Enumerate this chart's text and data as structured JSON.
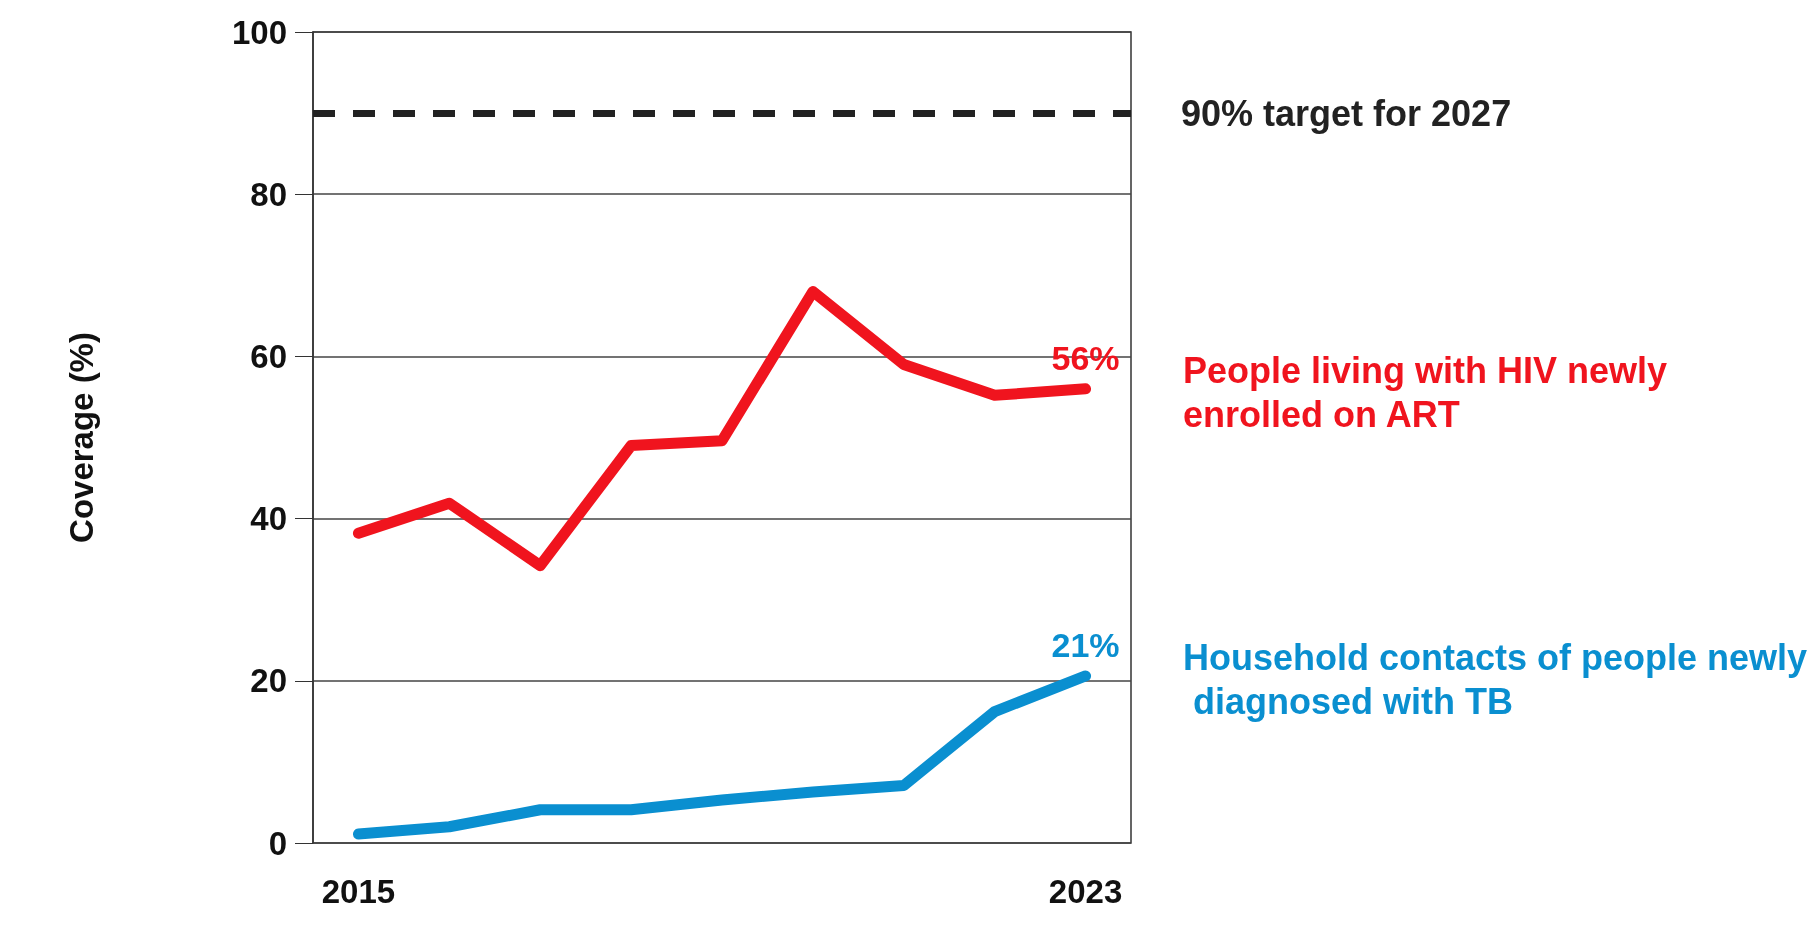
{
  "chart_data": {
    "type": "line",
    "ylabel": "Coverage (%)",
    "x": [
      2015,
      2016,
      2017,
      2018,
      2019,
      2020,
      2021,
      2022,
      2023
    ],
    "xlim": [
      2014.5,
      2023.5
    ],
    "xticks": [
      2015,
      2023
    ],
    "ylim": [
      0,
      100
    ],
    "yticks": [
      0,
      20,
      40,
      60,
      80,
      100
    ],
    "grid": "y",
    "legend": false,
    "marker": "none",
    "line_style": "solid",
    "series": [
      {
        "name": "People living with HIV newly enrolled on ART",
        "color": "#f0141e",
        "values": [
          38.2,
          41.9,
          34.2,
          49,
          49.6,
          68,
          59,
          55.2,
          56
        ],
        "value_labels": [
          null,
          null,
          null,
          null,
          null,
          null,
          null,
          null,
          "56%"
        ]
      },
      {
        "name": "Household contacts of people newly diagnosed with TB",
        "color": "#0a8fd0",
        "values": [
          1.1,
          2,
          4.1,
          4.1,
          5.3,
          6.3,
          7.1,
          16.2,
          20.6
        ],
        "value_labels": [
          null,
          null,
          null,
          null,
          null,
          null,
          null,
          null,
          "21%"
        ]
      }
    ],
    "ref_lines": [
      {
        "axis": "y",
        "value": 90,
        "label": "90% target for 2027",
        "color": "#222222",
        "line_style": "dashed"
      }
    ]
  }
}
